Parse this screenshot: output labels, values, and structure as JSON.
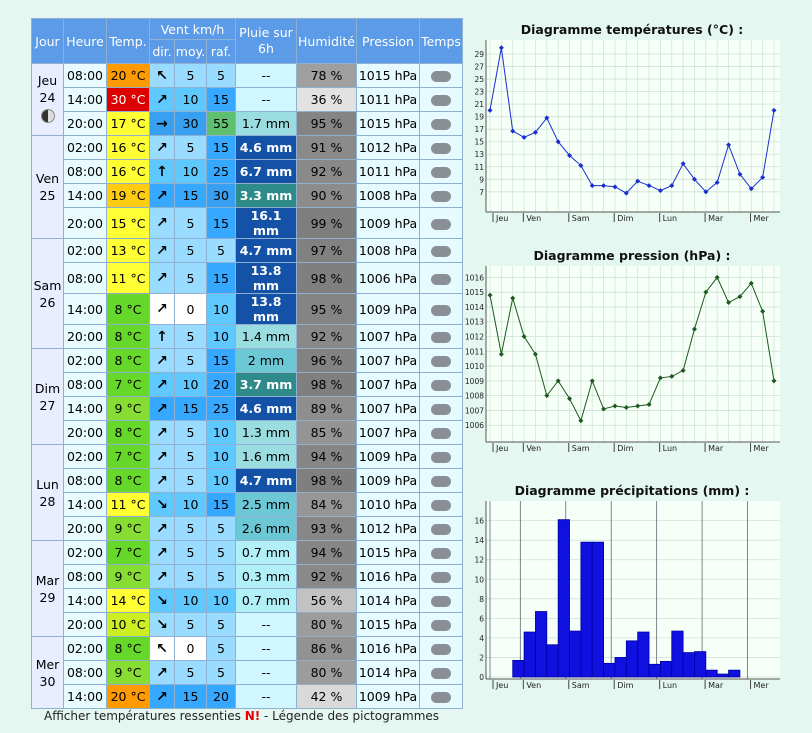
{
  "table": {
    "headers": [
      "Jour",
      "Heure",
      "Temp.",
      "Vent km/h",
      "Pluie sur 6h",
      "Humidité",
      "Pression",
      "Temps"
    ],
    "subheaders": [
      "dir.",
      "moy.",
      "raf."
    ],
    "days": [
      {
        "name": "Jeu",
        "date": "24",
        "rows": [
          {
            "time": "08:00",
            "temp": "20 °C",
            "dir": "↖",
            "avg": "5",
            "gust": "5",
            "rain": "--",
            "humidity": "78 %",
            "pressure": "1015 hPa"
          },
          {
            "time": "14:00",
            "temp": "30 °C",
            "dir": "↗",
            "avg": "10",
            "gust": "15",
            "rain": "--",
            "humidity": "36 %",
            "pressure": "1011 hPa"
          },
          {
            "time": "20:00",
            "temp": "17 °C",
            "dir": "→",
            "avg": "30",
            "gust": "55",
            "rain": "1.7 mm",
            "humidity": "95 %",
            "pressure": "1015 hPa"
          }
        ]
      },
      {
        "name": "Ven",
        "date": "25",
        "rows": [
          {
            "time": "02:00",
            "temp": "16 °C",
            "dir": "↗",
            "avg": "5",
            "gust": "15",
            "rain": "4.6 mm",
            "humidity": "91 %",
            "pressure": "1012 hPa"
          },
          {
            "time": "08:00",
            "temp": "16 °C",
            "dir": "↑",
            "avg": "10",
            "gust": "25",
            "rain": "6.7 mm",
            "humidity": "92 %",
            "pressure": "1011 hPa"
          },
          {
            "time": "14:00",
            "temp": "19 °C",
            "dir": "↗",
            "avg": "15",
            "gust": "30",
            "rain": "3.3 mm",
            "humidity": "90 %",
            "pressure": "1008 hPa"
          },
          {
            "time": "20:00",
            "temp": "15 °C",
            "dir": "↗",
            "avg": "5",
            "gust": "15",
            "rain": "16.1 mm",
            "humidity": "99 %",
            "pressure": "1009 hPa"
          }
        ]
      },
      {
        "name": "Sam",
        "date": "26",
        "rows": [
          {
            "time": "02:00",
            "temp": "13 °C",
            "dir": "↗",
            "avg": "5",
            "gust": "5",
            "rain": "4.7 mm",
            "humidity": "97 %",
            "pressure": "1008 hPa"
          },
          {
            "time": "08:00",
            "temp": "11 °C",
            "dir": "↗",
            "avg": "5",
            "gust": "15",
            "rain": "13.8 mm",
            "humidity": "98 %",
            "pressure": "1006 hPa"
          },
          {
            "time": "14:00",
            "temp": "8 °C",
            "dir": "↗",
            "avg": "0",
            "gust": "10",
            "rain": "13.8 mm",
            "humidity": "95 %",
            "pressure": "1009 hPa"
          },
          {
            "time": "20:00",
            "temp": "8 °C",
            "dir": "↑",
            "avg": "5",
            "gust": "10",
            "rain": "1.4 mm",
            "humidity": "92 %",
            "pressure": "1007 hPa"
          }
        ]
      },
      {
        "name": "Dim",
        "date": "27",
        "rows": [
          {
            "time": "02:00",
            "temp": "8 °C",
            "dir": "↗",
            "avg": "5",
            "gust": "15",
            "rain": "2 mm",
            "humidity": "96 %",
            "pressure": "1007 hPa"
          },
          {
            "time": "08:00",
            "temp": "7 °C",
            "dir": "↗",
            "avg": "10",
            "gust": "20",
            "rain": "3.7 mm",
            "humidity": "98 %",
            "pressure": "1007 hPa"
          },
          {
            "time": "14:00",
            "temp": "9 °C",
            "dir": "↗",
            "avg": "15",
            "gust": "25",
            "rain": "4.6 mm",
            "humidity": "89 %",
            "pressure": "1007 hPa"
          },
          {
            "time": "20:00",
            "temp": "8 °C",
            "dir": "↗",
            "avg": "5",
            "gust": "10",
            "rain": "1.3 mm",
            "humidity": "85 %",
            "pressure": "1007 hPa"
          }
        ]
      },
      {
        "name": "Lun",
        "date": "28",
        "rows": [
          {
            "time": "02:00",
            "temp": "7 °C",
            "dir": "↗",
            "avg": "5",
            "gust": "10",
            "rain": "1.6 mm",
            "humidity": "94 %",
            "pressure": "1009 hPa"
          },
          {
            "time": "08:00",
            "temp": "8 °C",
            "dir": "↗",
            "avg": "5",
            "gust": "10",
            "rain": "4.7 mm",
            "humidity": "98 %",
            "pressure": "1009 hPa"
          },
          {
            "time": "14:00",
            "temp": "11 °C",
            "dir": "↘",
            "avg": "10",
            "gust": "15",
            "rain": "2.5 mm",
            "humidity": "84 %",
            "pressure": "1010 hPa"
          },
          {
            "time": "20:00",
            "temp": "9 °C",
            "dir": "↗",
            "avg": "5",
            "gust": "5",
            "rain": "2.6 mm",
            "humidity": "93 %",
            "pressure": "1012 hPa"
          }
        ]
      },
      {
        "name": "Mar",
        "date": "29",
        "rows": [
          {
            "time": "02:00",
            "temp": "7 °C",
            "dir": "↗",
            "avg": "5",
            "gust": "5",
            "rain": "0.7 mm",
            "humidity": "94 %",
            "pressure": "1015 hPa"
          },
          {
            "time": "08:00",
            "temp": "9 °C",
            "dir": "↗",
            "avg": "5",
            "gust": "5",
            "rain": "0.3 mm",
            "humidity": "92 %",
            "pressure": "1016 hPa"
          },
          {
            "time": "14:00",
            "temp": "14 °C",
            "dir": "↘",
            "avg": "10",
            "gust": "10",
            "rain": "0.7 mm",
            "humidity": "56 %",
            "pressure": "1014 hPa"
          },
          {
            "time": "20:00",
            "temp": "10 °C",
            "dir": "↘",
            "avg": "5",
            "gust": "5",
            "rain": "--",
            "humidity": "80 %",
            "pressure": "1015 hPa"
          }
        ]
      },
      {
        "name": "Mer",
        "date": "30",
        "rows": [
          {
            "time": "02:00",
            "temp": "8 °C",
            "dir": "↖",
            "avg": "0",
            "gust": "5",
            "rain": "--",
            "humidity": "86 %",
            "pressure": "1016 hPa"
          },
          {
            "time": "08:00",
            "temp": "9 °C",
            "dir": "↗",
            "avg": "5",
            "gust": "5",
            "rain": "--",
            "humidity": "80 %",
            "pressure": "1014 hPa"
          },
          {
            "time": "14:00",
            "temp": "20 °C",
            "dir": "↗",
            "avg": "15",
            "gust": "20",
            "rain": "--",
            "humidity": "42 %",
            "pressure": "1009 hPa"
          }
        ]
      }
    ]
  },
  "footer": {
    "link1": "Afficher températures ressenties",
    "flag": "N!",
    "link2": " - Légende des pictogrammes"
  },
  "chart_data": [
    {
      "type": "line",
      "title": "Diagramme températures (°C) :",
      "color": "#1a2fd0",
      "x": [
        0,
        1,
        2,
        3,
        4,
        5,
        6,
        7,
        8,
        9,
        10,
        11,
        12,
        13,
        14,
        15,
        16,
        17,
        18,
        19,
        20,
        21,
        22,
        23,
        24,
        25
      ],
      "values": [
        20,
        30,
        16.7,
        15.7,
        16.5,
        18.8,
        15,
        12.8,
        11.2,
        8,
        8,
        7.8,
        6.8,
        8.7,
        8,
        7.2,
        8,
        11.5,
        9,
        7,
        8.5,
        14.5,
        9.8,
        7.5,
        9.3,
        20
      ],
      "xlim": [
        0,
        25
      ],
      "xticks": [
        {
          "value": 0,
          "label": "Jeu"
        },
        {
          "value": 2.67,
          "label": "Ven"
        },
        {
          "value": 6.67,
          "label": "Sam"
        },
        {
          "value": 10.67,
          "label": "Dim"
        },
        {
          "value": 14.67,
          "label": "Lun"
        },
        {
          "value": 18.67,
          "label": "Mar"
        },
        {
          "value": 22.67,
          "label": "Mer"
        }
      ],
      "ylim": [
        4.1,
        30.6
      ],
      "yticks": [
        7,
        9,
        11,
        13,
        15,
        17,
        19,
        21,
        23,
        25,
        27,
        29
      ],
      "grid": true
    },
    {
      "type": "line",
      "title": "Diagramme pression (hPa) :",
      "color": "#1d5a1d",
      "x": [
        0,
        1,
        2,
        3,
        4,
        5,
        6,
        7,
        8,
        9,
        10,
        11,
        12,
        13,
        14,
        15,
        16,
        17,
        18,
        19,
        20,
        21,
        22,
        23,
        24,
        25
      ],
      "values": [
        1014.8,
        1010.8,
        1014.6,
        1012,
        1010.8,
        1008,
        1009,
        1007.8,
        1006.3,
        1009,
        1007.1,
        1007.3,
        1007.2,
        1007.3,
        1007.4,
        1009.2,
        1009.3,
        1009.7,
        1012.5,
        1015,
        1016,
        1014.3,
        1014.7,
        1015.6,
        1013.7,
        1009
      ],
      "xlim": [
        0,
        25
      ],
      "xticks": [
        {
          "value": 0,
          "label": "Jeu"
        },
        {
          "value": 2.67,
          "label": "Ven"
        },
        {
          "value": 6.67,
          "label": "Sam"
        },
        {
          "value": 10.67,
          "label": "Dim"
        },
        {
          "value": 14.67,
          "label": "Lun"
        },
        {
          "value": 18.67,
          "label": "Mar"
        },
        {
          "value": 22.67,
          "label": "Mer"
        }
      ],
      "ylim": [
        1005,
        1016.5
      ],
      "yticks": [
        1006,
        1007,
        1008,
        1009,
        1010,
        1011,
        1012,
        1013,
        1014,
        1015,
        1016
      ],
      "grid": true
    },
    {
      "type": "bar",
      "title": "Diagramme précipitations (mm) :",
      "color": "#1010e0",
      "x": [
        0,
        1,
        2,
        3,
        4,
        5,
        6,
        7,
        8,
        9,
        10,
        11,
        12,
        13,
        14,
        15,
        16,
        17,
        18,
        19,
        20,
        21,
        22,
        23,
        24,
        25
      ],
      "values": [
        0,
        0,
        1.7,
        4.6,
        6.7,
        3.3,
        16.1,
        4.7,
        13.8,
        13.8,
        1.4,
        2,
        3.7,
        4.6,
        1.3,
        1.6,
        4.7,
        2.5,
        2.6,
        0.7,
        0.3,
        0.7,
        0,
        0,
        0,
        0
      ],
      "xlim": [
        0,
        25
      ],
      "xticks": [
        {
          "value": 0,
          "label": "Jeu"
        },
        {
          "value": 2.67,
          "label": "Ven"
        },
        {
          "value": 6.67,
          "label": "Sam"
        },
        {
          "value": 10.67,
          "label": "Dim"
        },
        {
          "value": 14.67,
          "label": "Lun"
        },
        {
          "value": 18.67,
          "label": "Mar"
        },
        {
          "value": 22.67,
          "label": "Mer"
        }
      ],
      "ylim": [
        0,
        17.6
      ],
      "yticks": [
        0,
        2,
        4,
        6,
        8,
        10,
        12,
        14,
        16
      ],
      "grid": true
    }
  ]
}
